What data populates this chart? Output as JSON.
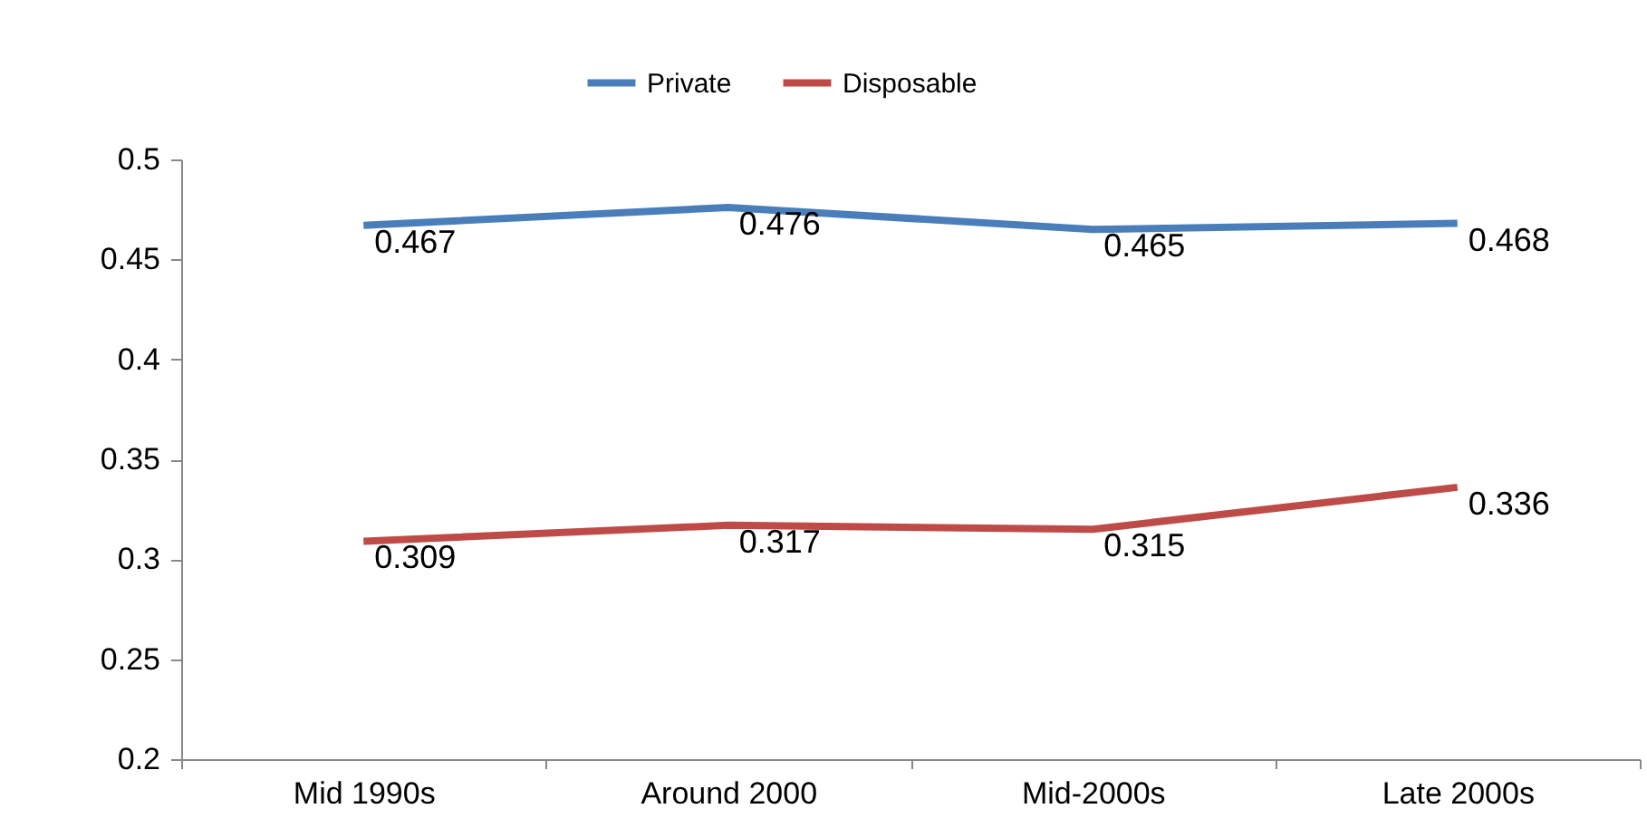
{
  "chart_data": {
    "type": "line",
    "categories": [
      "Mid 1990s",
      "Around 2000",
      "Mid-2000s",
      "Late 2000s"
    ],
    "series": [
      {
        "name": "Private",
        "color": "#4a7ebb",
        "values": [
          0.467,
          0.476,
          0.465,
          0.468
        ]
      },
      {
        "name": "Disposable",
        "color": "#be4b48",
        "values": [
          0.309,
          0.317,
          0.315,
          0.336
        ]
      }
    ],
    "ylim": [
      0.2,
      0.5
    ],
    "yticks": [
      0.2,
      0.25,
      0.3,
      0.35,
      0.4,
      0.45,
      0.5
    ],
    "data_labels": true,
    "legend": "top",
    "grid": false
  }
}
